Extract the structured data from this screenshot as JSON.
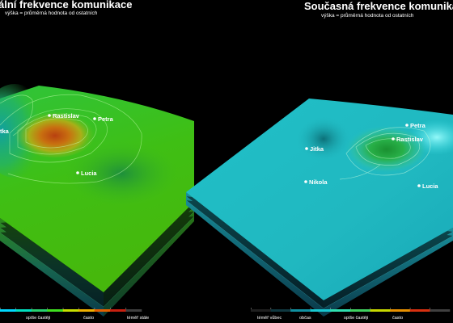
{
  "chart_data": [
    {
      "type": "surface",
      "title": "ální frekvence komunikace",
      "subtitle": "výška = průměrná hodnota od ostatních",
      "people": [
        {
          "name": "Rastislav",
          "value": 0.85
        },
        {
          "name": "Petra",
          "value": 0.55
        },
        {
          "name": "tka",
          "value": 0.45
        },
        {
          "name": "Lucia",
          "value": 0.4
        }
      ],
      "legend": {
        "ticks": [
          "spíše častěji",
          "často",
          "téměř stále"
        ],
        "colors": [
          "#00d8ff",
          "#00e0c0",
          "#28d070",
          "#40e020",
          "#c8e000",
          "#f0b000",
          "#e86000",
          "#c82010",
          "#404040"
        ]
      }
    },
    {
      "type": "surface",
      "title": "Současná frekvence komunikace",
      "subtitle": "výška = průměrná hodnota od ostatních",
      "people": [
        {
          "name": "Petra",
          "value": 0.35
        },
        {
          "name": "Rastislav",
          "value": 0.45
        },
        {
          "name": "Jitka",
          "value": 0.2
        },
        {
          "name": "Nikola",
          "value": 0.15
        },
        {
          "name": "Lucia",
          "value": 0.2
        }
      ],
      "legend": {
        "ticks": [
          "téměř vůbec",
          "občas",
          "spíše častěji",
          "často"
        ],
        "colors": [
          "#202020",
          "#103840",
          "#1090a0",
          "#18c8d0",
          "#30e0b0",
          "#40d060",
          "#c8d800",
          "#e89000",
          "#d83010",
          "#404040"
        ]
      }
    }
  ]
}
